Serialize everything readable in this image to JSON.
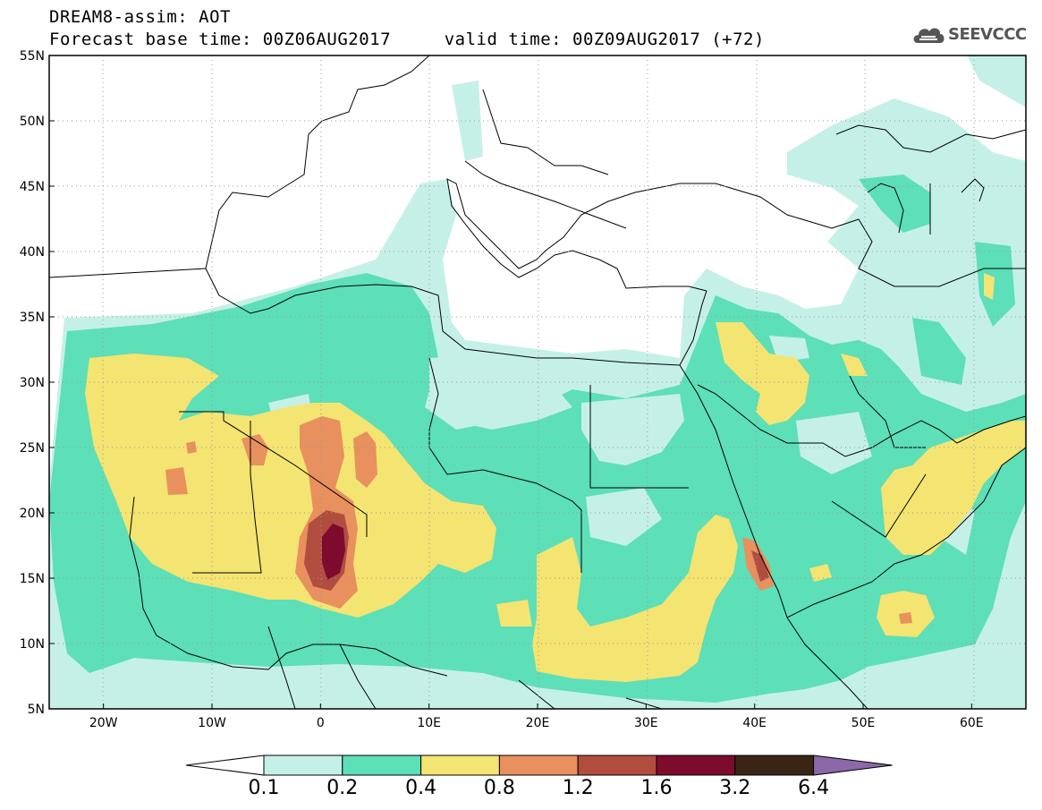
{
  "title": {
    "line1": "DREAM8-assim: AOT",
    "line2": "Forecast base time: 00Z06AUG2017     valid time: 00Z09AUG2017 (+72)"
  },
  "logo": {
    "text": "SEEVCCC",
    "icon": "cloud-icon"
  },
  "map": {
    "variable": "AOT",
    "extent": {
      "lon": [
        -25,
        65
      ],
      "lat": [
        5,
        55
      ]
    },
    "x_ticks": [
      "20W",
      "10W",
      "0",
      "10E",
      "20E",
      "30E",
      "40E",
      "50E",
      "60E"
    ],
    "y_ticks": [
      "55N",
      "50N",
      "45N",
      "40N",
      "35N",
      "30N",
      "25N",
      "20N",
      "15N",
      "10N",
      "5N"
    ]
  },
  "colorbar": {
    "labels": [
      "0.1",
      "0.2",
      "0.4",
      "0.8",
      "1.2",
      "1.6",
      "3.2",
      "6.4"
    ],
    "colors": [
      "#ffffff",
      "#c5f0e8",
      "#5ddfb8",
      "#f4e472",
      "#e8905e",
      "#b14d3f",
      "#7c0b2e",
      "#3a2413",
      "#8b68a8"
    ]
  }
}
